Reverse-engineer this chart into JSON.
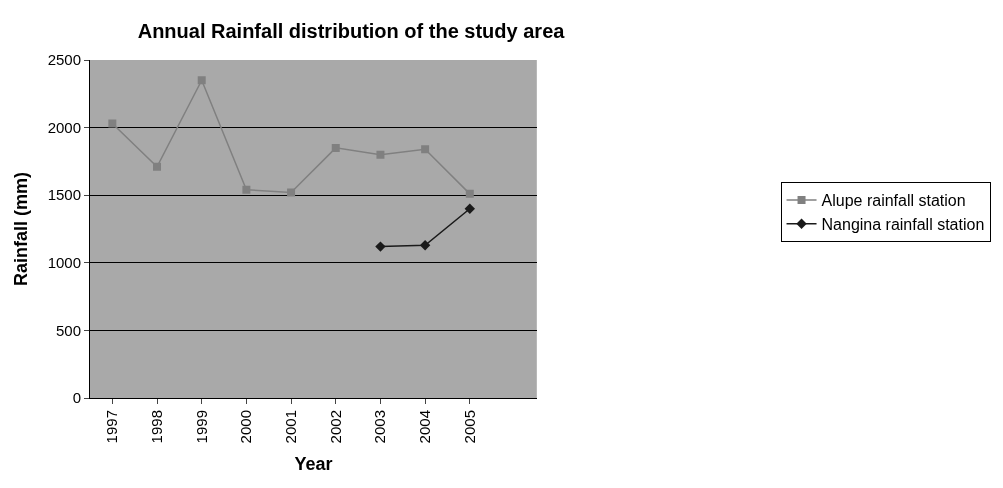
{
  "chart_data": {
    "type": "line",
    "title": "Annual Rainfall distribution of the study area",
    "xlabel": "Year",
    "ylabel": "Rainfall (mm)",
    "categories": [
      "1997",
      "1998",
      "1999",
      "2000",
      "2001",
      "2002",
      "2003",
      "2004",
      "2005",
      null
    ],
    "series": [
      {
        "name": "Alupe rainfall station",
        "color": "#808080",
        "marker": "square",
        "values": [
          2030,
          1710,
          2350,
          1540,
          1520,
          1850,
          1800,
          1840,
          1510,
          null
        ]
      },
      {
        "name": "Nangina rainfall station",
        "color": "#1a1a1a",
        "marker": "diamond",
        "values": [
          null,
          null,
          null,
          null,
          null,
          null,
          1120,
          1130,
          1400,
          null
        ]
      }
    ],
    "ylim": [
      0,
      2500
    ],
    "yticks": [
      0,
      500,
      1000,
      1500,
      2000,
      2500
    ],
    "grid": "y",
    "legend": "right",
    "line_style": "solid"
  }
}
